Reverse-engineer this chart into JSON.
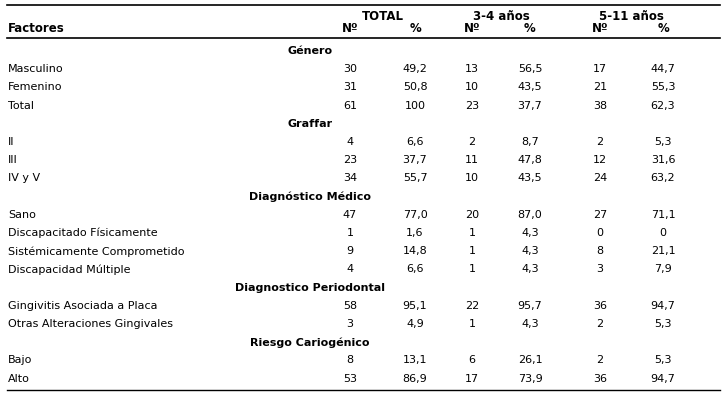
{
  "header_group1": "TOTAL",
  "header_group2": "3-4 años",
  "header_group3": "5-11 años",
  "col_headers": [
    "Factores",
    "Nº",
    "%",
    "Nº",
    "%",
    "Nº",
    "%"
  ],
  "rows": [
    {
      "label": "Género",
      "type": "section",
      "values": []
    },
    {
      "label": "Masculino",
      "type": "data",
      "values": [
        "30",
        "49,2",
        "13",
        "56,5",
        "17",
        "44,7"
      ]
    },
    {
      "label": "Femenino",
      "type": "data",
      "values": [
        "31",
        "50,8",
        "10",
        "43,5",
        "21",
        "55,3"
      ]
    },
    {
      "label": "Total",
      "type": "data",
      "values": [
        "61",
        "100",
        "23",
        "37,7",
        "38",
        "62,3"
      ]
    },
    {
      "label": "Graffar",
      "type": "section",
      "values": []
    },
    {
      "label": "II",
      "type": "data",
      "values": [
        "4",
        "6,6",
        "2",
        "8,7",
        "2",
        "5,3"
      ]
    },
    {
      "label": "III",
      "type": "data",
      "values": [
        "23",
        "37,7",
        "11",
        "47,8",
        "12",
        "31,6"
      ]
    },
    {
      "label": "IV y V",
      "type": "data",
      "values": [
        "34",
        "55,7",
        "10",
        "43,5",
        "24",
        "63,2"
      ]
    },
    {
      "label": "Diagnóstico Médico",
      "type": "section",
      "values": []
    },
    {
      "label": "Sano",
      "type": "data",
      "values": [
        "47",
        "77,0",
        "20",
        "87,0",
        "27",
        "71,1"
      ]
    },
    {
      "label": "Discapacitado Físicamente",
      "type": "data",
      "values": [
        "1",
        "1,6",
        "1",
        "4,3",
        "0",
        "0"
      ]
    },
    {
      "label": "Sistémicamente Comprometido",
      "type": "data",
      "values": [
        "9",
        "14,8",
        "1",
        "4,3",
        "8",
        "21,1"
      ]
    },
    {
      "label": "Discapacidad Múltiple",
      "type": "data",
      "values": [
        "4",
        "6,6",
        "1",
        "4,3",
        "3",
        "7,9"
      ]
    },
    {
      "label": "Diagnostico Periodontal",
      "type": "section",
      "values": []
    },
    {
      "label": "Gingivitis Asociada a Placa",
      "type": "data",
      "values": [
        "58",
        "95,1",
        "22",
        "95,7",
        "36",
        "94,7"
      ]
    },
    {
      "label": "Otras Alteraciones Gingivales",
      "type": "data",
      "values": [
        "3",
        "4,9",
        "1",
        "4,3",
        "2",
        "5,3"
      ]
    },
    {
      "label": "Riesgo Cariogénico",
      "type": "section",
      "values": []
    },
    {
      "label": "Bajo",
      "type": "data",
      "values": [
        "8",
        "13,1",
        "6",
        "26,1",
        "2",
        "5,3"
      ]
    },
    {
      "label": "Alto",
      "type": "data",
      "values": [
        "53",
        "86,9",
        "17",
        "73,9",
        "36",
        "94,7"
      ]
    }
  ],
  "bg_color": "#ffffff",
  "text_color": "#000000",
  "font_size": 8.0,
  "header_font_size": 8.5
}
